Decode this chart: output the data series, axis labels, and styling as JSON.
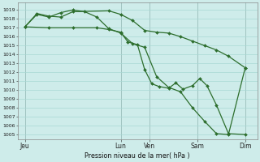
{
  "title": "Pression niveau de la mer( hPa )",
  "background_color": "#ceecea",
  "grid_color": "#a8d8d4",
  "line_color": "#2d6e2d",
  "ylim": [
    1004.5,
    1019.8
  ],
  "day_labels": [
    "Jeu",
    "Lun",
    "Ven",
    "Sam",
    "Dim"
  ],
  "day_positions": [
    0,
    4.0,
    5.2,
    7.2,
    9.2
  ],
  "xlim": [
    -0.3,
    9.7
  ],
  "line1_x": [
    0.0,
    0.5,
    1.0,
    1.5,
    2.0,
    3.5,
    4.0,
    4.5,
    5.0,
    5.5,
    6.0,
    6.5,
    7.0,
    7.5,
    8.0,
    8.5,
    9.2
  ],
  "line1_y": [
    1017.1,
    1018.6,
    1018.3,
    1018.2,
    1018.8,
    1018.9,
    1018.5,
    1017.8,
    1016.7,
    1016.5,
    1016.4,
    1016.0,
    1015.5,
    1015.0,
    1014.5,
    1013.8,
    1012.5
  ],
  "line2_x": [
    0.0,
    1.0,
    2.0,
    3.0,
    3.5,
    4.0,
    4.3,
    4.7,
    5.0,
    5.3,
    5.6,
    6.0,
    6.3,
    6.6,
    7.0,
    7.3,
    7.6,
    8.0,
    8.5,
    9.2
  ],
  "line2_y": [
    1017.1,
    1017.0,
    1017.0,
    1017.0,
    1016.8,
    1016.5,
    1015.4,
    1015.1,
    1012.3,
    1010.7,
    1010.4,
    1010.2,
    1010.8,
    1010.1,
    1010.5,
    1011.3,
    1010.5,
    1008.3,
    1005.1,
    1005.0
  ],
  "line3_x": [
    0.0,
    0.5,
    1.0,
    1.5,
    2.0,
    2.5,
    3.0,
    3.5,
    4.0,
    4.5,
    5.0,
    5.5,
    6.0,
    6.5,
    7.0,
    7.5,
    8.0,
    8.5,
    9.2
  ],
  "line3_y": [
    1017.1,
    1018.5,
    1018.2,
    1018.7,
    1019.0,
    1018.8,
    1018.2,
    1016.9,
    1016.4,
    1015.2,
    1014.8,
    1011.5,
    1010.3,
    1009.8,
    1008.0,
    1006.5,
    1005.1,
    1005.0,
    1012.5
  ]
}
